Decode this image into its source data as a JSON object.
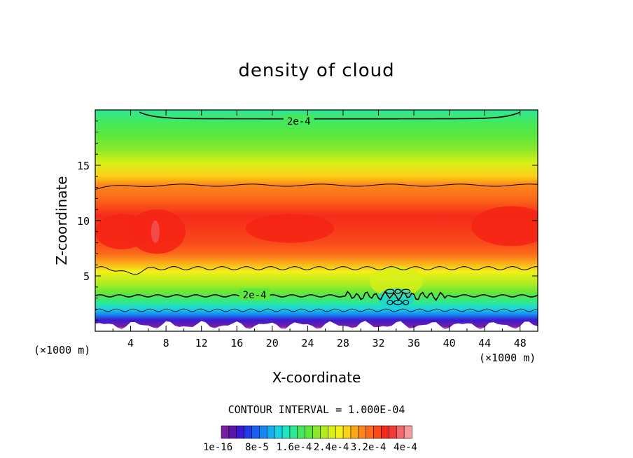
{
  "chart_data": {
    "type": "heatmap",
    "title": "density of cloud",
    "xlabel": "X-coordinate",
    "ylabel": "Z-coordinate",
    "x_unit_left": "(×1000 m)",
    "x_unit_right": "(×1000 m)",
    "xlim": [
      0,
      50
    ],
    "ylim": [
      0,
      20
    ],
    "x_ticks": [
      "4",
      "8",
      "12",
      "16",
      "20",
      "24",
      "28",
      "32",
      "36",
      "40",
      "44",
      "48"
    ],
    "y_ticks": [
      "5",
      "10",
      "15"
    ],
    "contour_labels": [
      {
        "text": "2e-4",
        "x": 23,
        "z": 19
      },
      {
        "text": "2e-4",
        "x": 18,
        "z": 3.3
      }
    ],
    "contour_interval_text": "CONTOUR INTERVAL = 1.000E-04",
    "colorbar": {
      "colors": [
        "#7a1fa2",
        "#5a14a8",
        "#3a1ad0",
        "#1e3ce8",
        "#1a60f0",
        "#1686f2",
        "#14aef0",
        "#18d2e6",
        "#20e6c0",
        "#2ee892",
        "#44e85a",
        "#5ee83a",
        "#8ce82a",
        "#b4ec20",
        "#d8f018",
        "#f4f018",
        "#fcd018",
        "#fca81a",
        "#fc861a",
        "#fc6a1a",
        "#f84a1a",
        "#f62a1a",
        "#f23a3a",
        "#f26a6a",
        "#f89a9a"
      ],
      "labels": [
        "1e-16",
        "8e-5",
        "1.6e-4",
        "2.4e-4",
        "3.2e-4",
        "4e-4"
      ]
    }
  }
}
